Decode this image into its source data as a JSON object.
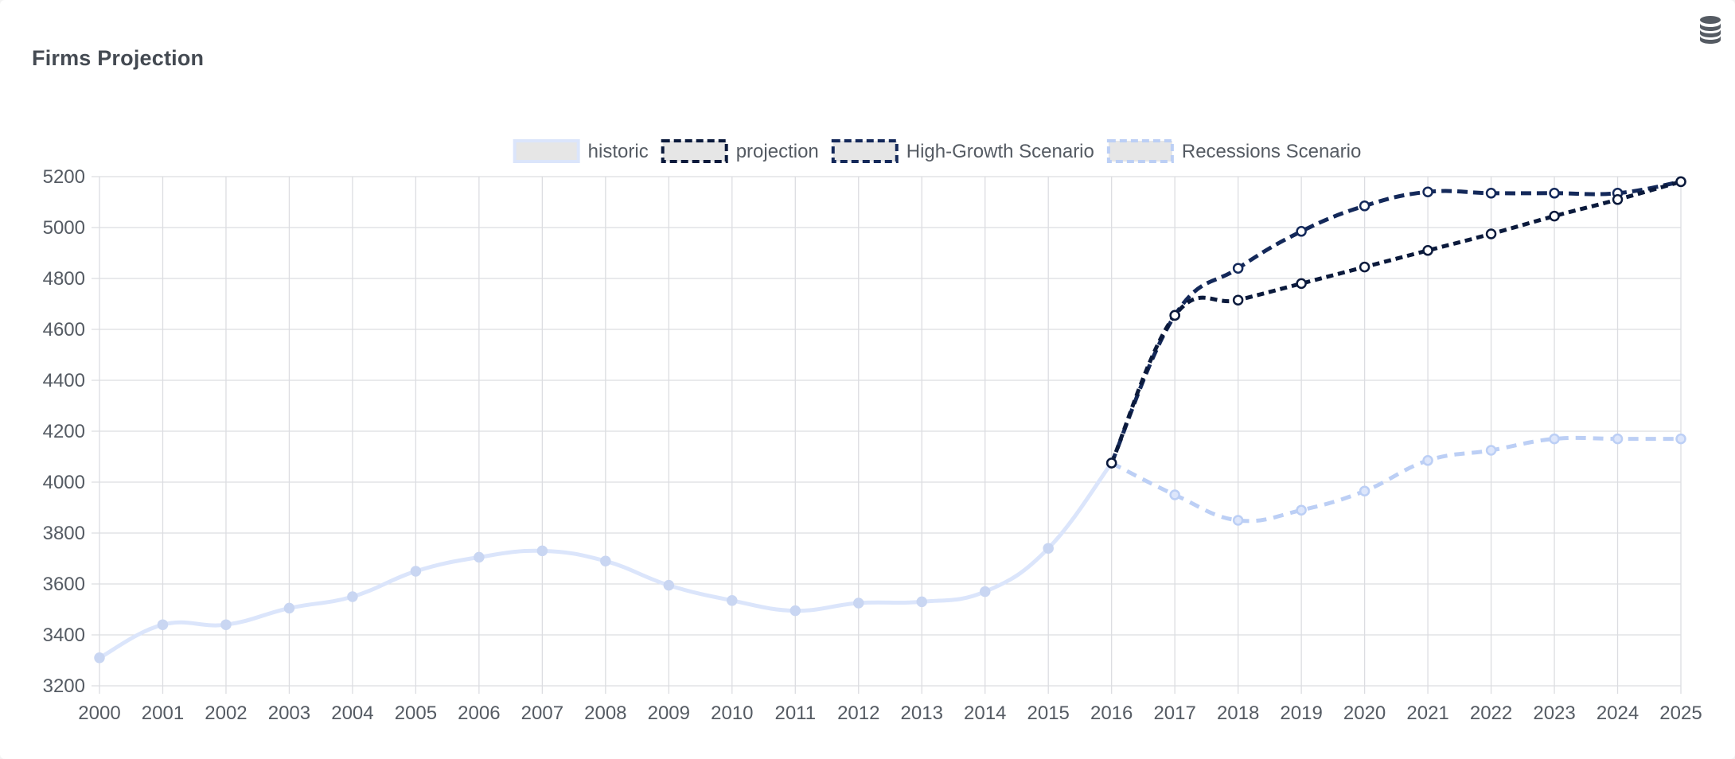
{
  "header": {
    "title": "Firms Projection",
    "data_icon": "database-icon"
  },
  "colors": {
    "historic": "#dbe5fb",
    "historic_point": "#c9d6f2",
    "projection": "#0b1a3c",
    "high_growth": "#14295a",
    "recession": "#bccff5",
    "grid": "#dcdde1",
    "legend_box_fill": "#e6e6e6"
  },
  "chart_data": {
    "type": "line",
    "title": "Firms Projection",
    "xlabel": "",
    "ylabel": "",
    "ylim": [
      3200,
      5200
    ],
    "yticks": [
      "3200",
      "3400",
      "3600",
      "3800",
      "4000",
      "4200",
      "4400",
      "4600",
      "4800",
      "5000",
      "5200"
    ],
    "grid": true,
    "legend_position": "top-center",
    "categories": [
      "2000",
      "2001",
      "2002",
      "2003",
      "2004",
      "2005",
      "2006",
      "2007",
      "2008",
      "2009",
      "2010",
      "2011",
      "2012",
      "2013",
      "2014",
      "2015",
      "2016",
      "2017",
      "2018",
      "2019",
      "2020",
      "2021",
      "2022",
      "2023",
      "2024",
      "2025"
    ],
    "series": [
      {
        "name": "historic",
        "style": "solid",
        "values": [
          3310,
          3440,
          3440,
          3505,
          3550,
          3650,
          3705,
          3730,
          3690,
          3595,
          3535,
          3495,
          3525,
          3530,
          3570,
          3740,
          4075,
          null,
          null,
          null,
          null,
          null,
          null,
          null,
          null,
          null
        ]
      },
      {
        "name": "projection",
        "style": "dashed",
        "values": [
          null,
          null,
          null,
          null,
          null,
          null,
          null,
          null,
          null,
          null,
          null,
          null,
          null,
          null,
          null,
          null,
          4075,
          4655,
          4715,
          4780,
          4845,
          4910,
          4975,
          5045,
          5110,
          5180
        ]
      },
      {
        "name": "High-Growth Scenario",
        "style": "dashed",
        "values": [
          null,
          null,
          null,
          null,
          null,
          null,
          null,
          null,
          null,
          null,
          null,
          null,
          null,
          null,
          null,
          null,
          4075,
          4655,
          4840,
          4985,
          5085,
          5140,
          5135,
          5135,
          5135,
          5180
        ]
      },
      {
        "name": "Recessions Scenario",
        "style": "dashed",
        "values": [
          null,
          null,
          null,
          null,
          null,
          null,
          null,
          null,
          null,
          null,
          null,
          null,
          null,
          null,
          null,
          null,
          4075,
          3950,
          3850,
          3890,
          3965,
          4085,
          4125,
          4170,
          4170,
          4170
        ]
      }
    ]
  }
}
